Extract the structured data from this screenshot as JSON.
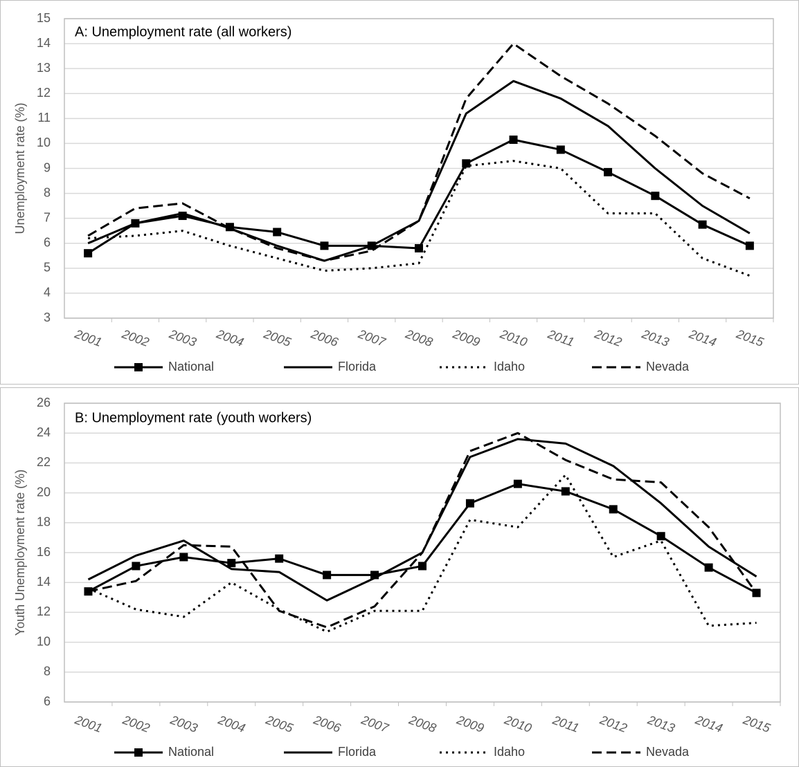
{
  "chart_data": [
    {
      "type": "line",
      "title": "A: Unemployment rate (all workers)",
      "y_label": "Unemployment rate (%)",
      "categories": [
        "2001",
        "2002",
        "2003",
        "2004",
        "2005",
        "2006",
        "2007",
        "2008",
        "2009",
        "2010",
        "2011",
        "2012",
        "2013",
        "2014",
        "2015"
      ],
      "ylim": [
        3,
        15
      ],
      "yticks": [
        3,
        4,
        5,
        6,
        7,
        8,
        9,
        10,
        11,
        12,
        13,
        14,
        15
      ],
      "grid": true,
      "legend": "bottom",
      "series": [
        {
          "name": "National",
          "color": "#000000",
          "line_style": "solid",
          "marker": "square",
          "values": [
            5.6,
            6.8,
            7.1,
            6.65,
            6.45,
            5.9,
            5.9,
            5.8,
            9.2,
            10.15,
            9.75,
            8.85,
            7.9,
            6.75,
            5.9
          ]
        },
        {
          "name": "Florida",
          "color": "#000000",
          "line_style": "solid",
          "values": [
            6.0,
            6.8,
            7.2,
            6.6,
            5.9,
            5.3,
            5.9,
            6.9,
            11.2,
            12.5,
            11.8,
            10.7,
            9.0,
            7.5,
            6.4
          ]
        },
        {
          "name": "Idaho",
          "color": "#000000",
          "line_style": "dotted",
          "values": [
            6.2,
            6.3,
            6.5,
            5.9,
            5.4,
            4.9,
            5.0,
            5.2,
            9.1,
            9.3,
            9.0,
            7.2,
            7.2,
            5.4,
            4.7
          ]
        },
        {
          "name": "Nevada",
          "color": "#000000",
          "line_style": "dashed",
          "values": [
            6.3,
            7.4,
            7.6,
            6.6,
            5.8,
            5.3,
            5.7,
            6.9,
            11.8,
            14.0,
            12.7,
            11.6,
            10.3,
            8.8,
            7.8
          ]
        }
      ]
    },
    {
      "type": "line",
      "title": "B: Unemployment rate (youth workers)",
      "y_label": "Youth Unemployment rate (%)",
      "categories": [
        "2001",
        "2002",
        "2003",
        "2004",
        "2005",
        "2006",
        "2007",
        "2008",
        "2009",
        "2010",
        "2011",
        "2012",
        "2013",
        "2014",
        "2015"
      ],
      "ylim": [
        6,
        26
      ],
      "yticks": [
        6,
        8,
        10,
        12,
        14,
        16,
        18,
        20,
        22,
        24,
        26
      ],
      "grid": true,
      "legend": "bottom",
      "series": [
        {
          "name": "National",
          "color": "#000000",
          "line_style": "solid",
          "marker": "square",
          "values": [
            13.4,
            15.1,
            15.7,
            15.3,
            15.6,
            14.5,
            14.5,
            15.1,
            19.3,
            20.6,
            20.1,
            18.9,
            17.1,
            15.0,
            13.3
          ]
        },
        {
          "name": "Florida",
          "color": "#000000",
          "line_style": "solid",
          "values": [
            14.2,
            15.8,
            16.8,
            14.9,
            14.7,
            12.8,
            14.3,
            16.0,
            22.4,
            23.6,
            23.3,
            21.8,
            19.3,
            16.4,
            14.4
          ]
        },
        {
          "name": "Idaho",
          "color": "#000000",
          "line_style": "dotted",
          "values": [
            13.6,
            12.2,
            11.7,
            14.0,
            12.2,
            10.7,
            12.1,
            12.1,
            18.2,
            17.7,
            21.2,
            15.7,
            16.8,
            11.1,
            11.3
          ]
        },
        {
          "name": "Nevada",
          "color": "#000000",
          "line_style": "dashed",
          "values": [
            13.4,
            14.1,
            16.5,
            16.4,
            12.1,
            11.0,
            12.4,
            16.0,
            22.8,
            24.0,
            22.2,
            20.9,
            20.7,
            17.7,
            13.3
          ]
        }
      ]
    }
  ]
}
